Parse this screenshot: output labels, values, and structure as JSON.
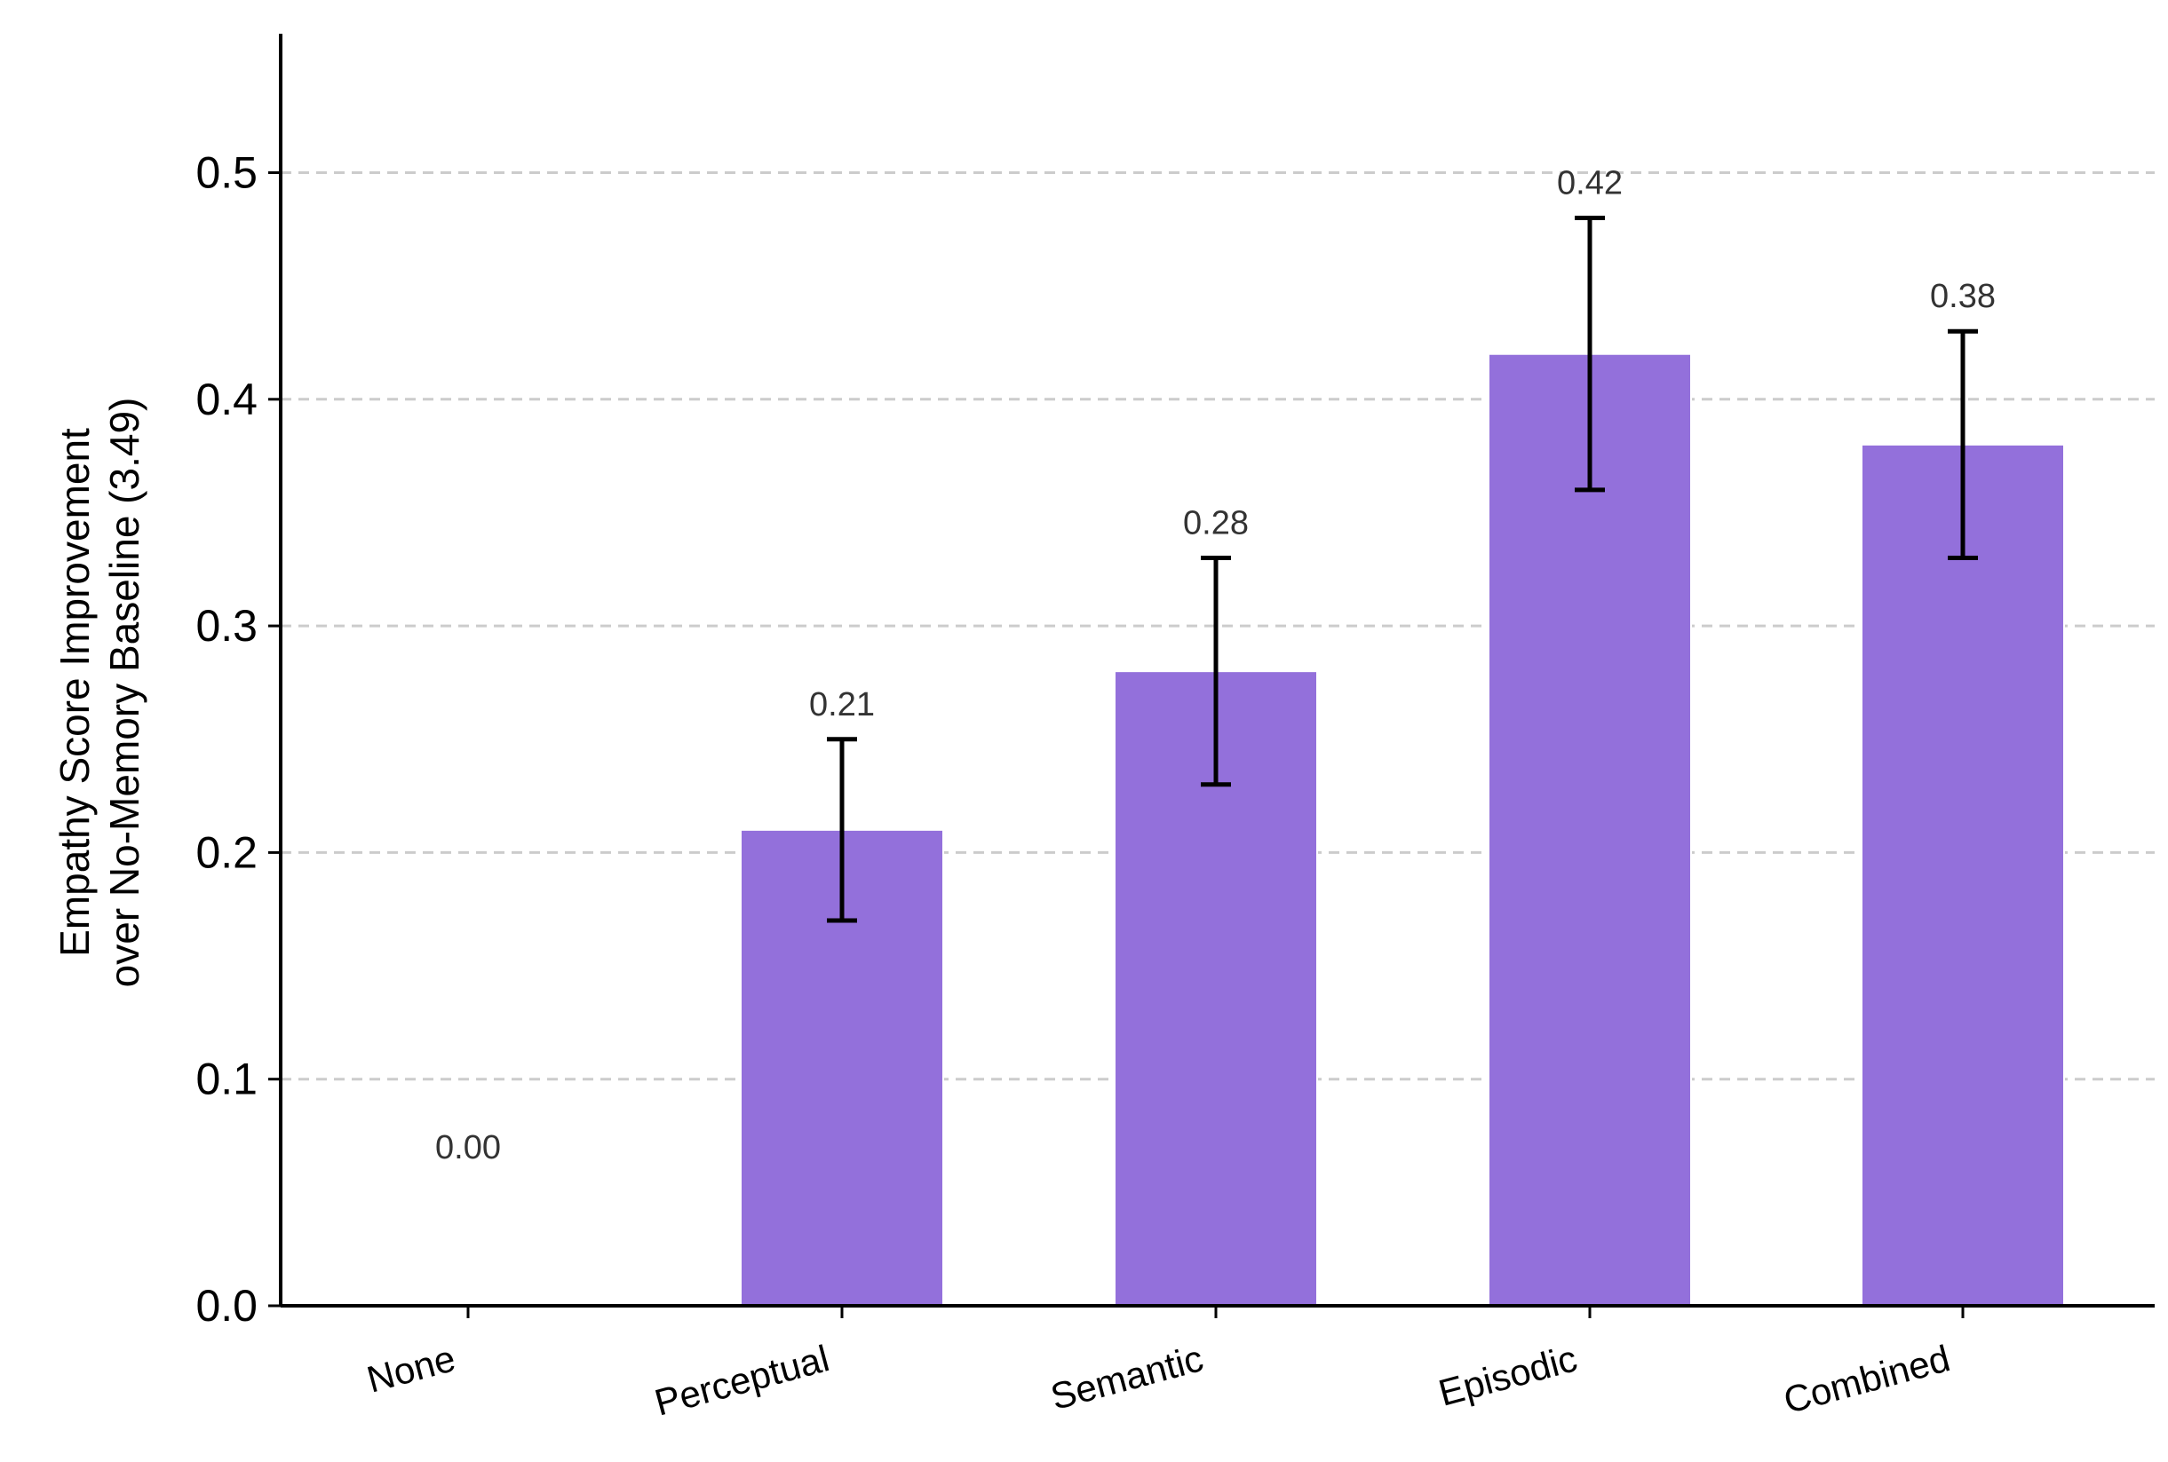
{
  "chart_data": {
    "type": "bar",
    "categories": [
      "None",
      "Perceptual",
      "Semantic",
      "Episodic",
      "Combined"
    ],
    "values": [
      0.0,
      0.21,
      0.28,
      0.42,
      0.38
    ],
    "error_low": [
      0.0,
      0.17,
      0.23,
      0.36,
      0.33
    ],
    "error_high": [
      0.0,
      0.25,
      0.33,
      0.48,
      0.43
    ],
    "value_labels": [
      "0.00",
      "0.21",
      "0.28",
      "0.42",
      "0.38"
    ],
    "ylabel_line1": "Empathy Score Improvement",
    "ylabel_line2": "over No-Memory Baseline (3.49)",
    "ylim": [
      0,
      0.56
    ],
    "yticks": [
      0.0,
      0.1,
      0.2,
      0.3,
      0.4,
      0.5
    ],
    "ytick_labels": [
      "0.0",
      "0.1",
      "0.2",
      "0.3",
      "0.4",
      "0.5"
    ],
    "grid": "y-dashed",
    "colors": {
      "bar": "#9370DB",
      "grid": "#cccccc",
      "axis": "#000000",
      "error": "#000000",
      "label": "#333333"
    }
  }
}
